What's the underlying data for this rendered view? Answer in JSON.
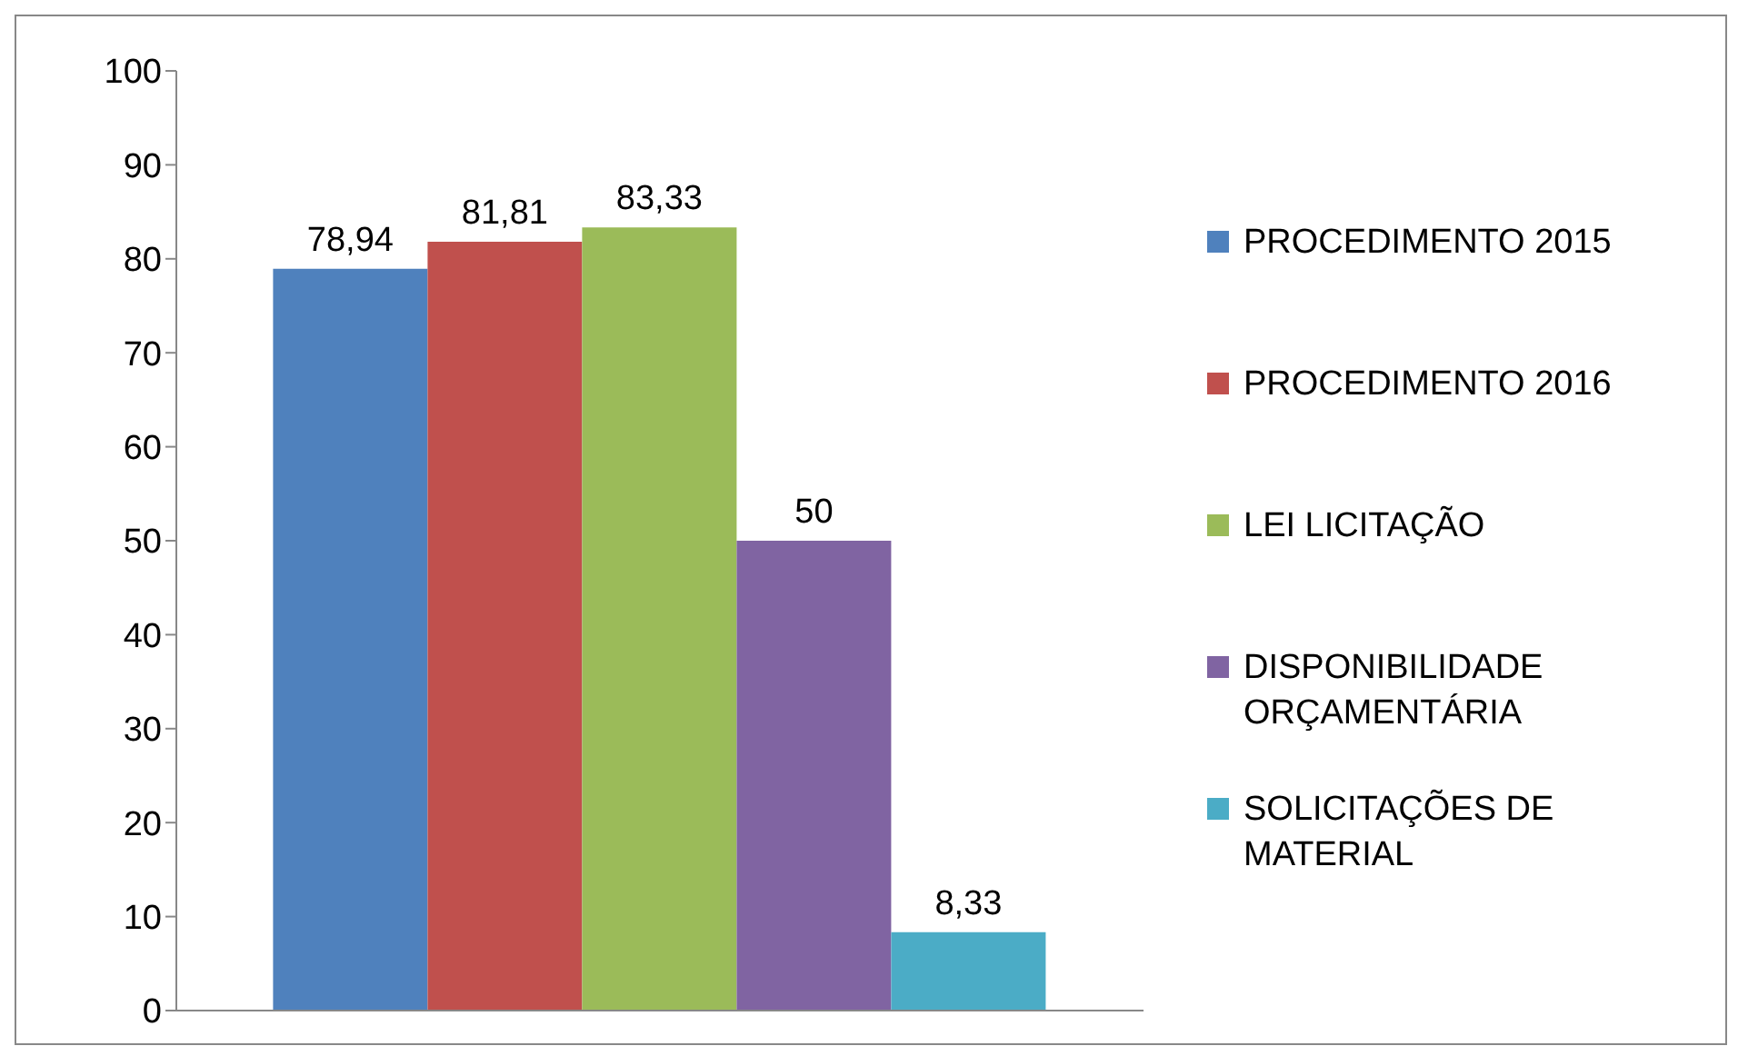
{
  "chart_data": {
    "type": "bar",
    "categories": [
      null
    ],
    "series": [
      {
        "name": "PROCEDIMENTO 2015",
        "color": "#4f81bd",
        "values": [
          78.94
        ],
        "value_labels": [
          "78,94"
        ]
      },
      {
        "name": "PROCEDIMENTO 2016",
        "color": "#c0504d",
        "values": [
          81.81
        ],
        "value_labels": [
          "81,81"
        ]
      },
      {
        "name": "LEI LICITAÇÃO",
        "color": "#9bbb59",
        "values": [
          83.33
        ],
        "value_labels": [
          "83,33"
        ]
      },
      {
        "name": "DISPONIBILIDADE ORÇAMENTÁRIA",
        "color": "#8064a2",
        "values": [
          50
        ],
        "value_labels": [
          "50"
        ]
      },
      {
        "name": "SOLICITAÇÕES DE MATERIAL",
        "color": "#4bacc6",
        "values": [
          8.33
        ],
        "value_labels": [
          "8,33"
        ]
      }
    ],
    "ylim": [
      0,
      100
    ],
    "yticks": [
      0,
      10,
      20,
      30,
      40,
      50,
      60,
      70,
      80,
      90,
      100
    ],
    "grid": false,
    "legend": "right",
    "tick_labels": "y"
  }
}
